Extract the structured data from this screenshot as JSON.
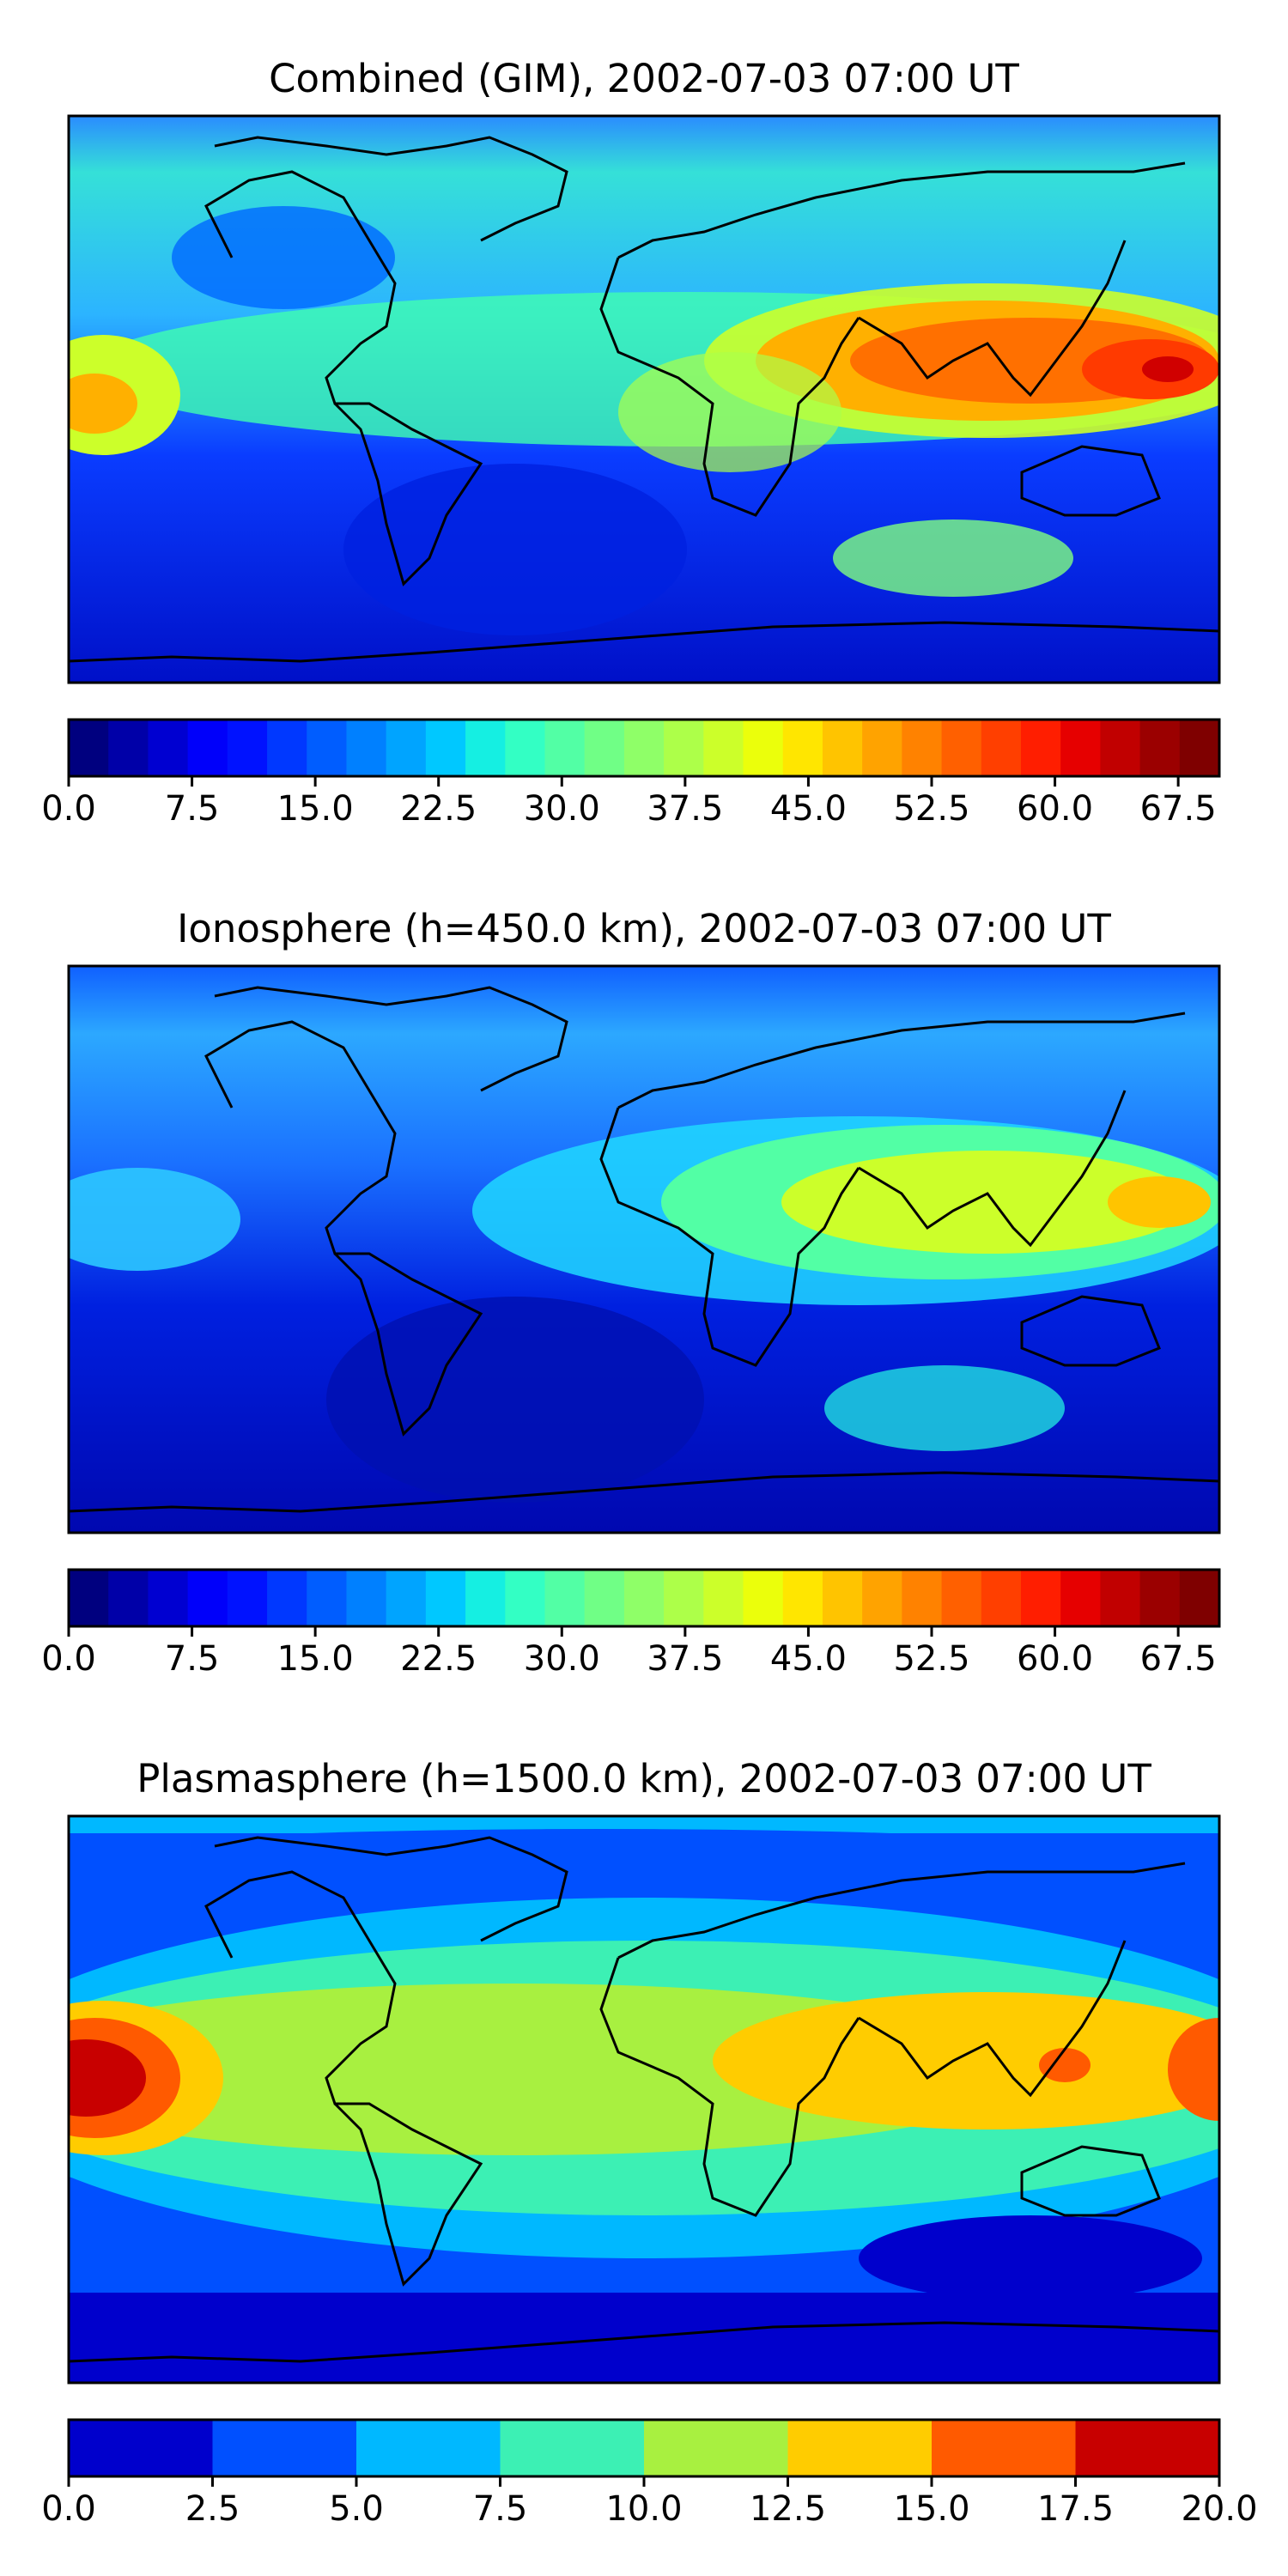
{
  "panels": [
    {
      "title": "Combined (GIM), 2002-07-03 07:00 UT",
      "scale": {
        "min": 0,
        "max": 70,
        "ticks": [
          "0.0",
          "7.5",
          "15.0",
          "22.5",
          "30.0",
          "37.5",
          "45.0",
          "52.5",
          "60.0",
          "67.5"
        ],
        "colors": [
          "#00007f",
          "#0000a8",
          "#0000d1",
          "#0000fa",
          "#0012ff",
          "#0038ff",
          "#005dff",
          "#0080ff",
          "#00a4ff",
          "#00c8ff",
          "#15efe2",
          "#33ffc4",
          "#52ffa5",
          "#70ff86",
          "#8fff68",
          "#adff49",
          "#ccff2a",
          "#ebff0b",
          "#ffe600",
          "#ffc400",
          "#ffa300",
          "#ff8200",
          "#ff6000",
          "#ff3f00",
          "#ff1e00",
          "#e60000",
          "#c10000",
          "#9b0000",
          "#7f0000"
        ]
      }
    },
    {
      "title": "Ionosphere  (h=450.0 km), 2002-07-03 07:00 UT",
      "scale": {
        "min": 0,
        "max": 70,
        "ticks": [
          "0.0",
          "7.5",
          "15.0",
          "22.5",
          "30.0",
          "37.5",
          "45.0",
          "52.5",
          "60.0",
          "67.5"
        ],
        "colors": [
          "#00007f",
          "#0000a8",
          "#0000d1",
          "#0000fa",
          "#0012ff",
          "#0038ff",
          "#005dff",
          "#0080ff",
          "#00a4ff",
          "#00c8ff",
          "#15efe2",
          "#33ffc4",
          "#52ffa5",
          "#70ff86",
          "#8fff68",
          "#adff49",
          "#ccff2a",
          "#ebff0b",
          "#ffe600",
          "#ffc400",
          "#ffa300",
          "#ff8200",
          "#ff6000",
          "#ff3f00",
          "#ff1e00",
          "#e60000",
          "#c10000",
          "#9b0000",
          "#7f0000"
        ]
      }
    },
    {
      "title": "Plasmasphere (h=1500.0 km), 2002-07-03 07:00 UT",
      "scale": {
        "min": 0,
        "max": 20,
        "ticks": [
          "0.0",
          "2.5",
          "5.0",
          "7.5",
          "10.0",
          "12.5",
          "15.0",
          "17.5",
          "20.0"
        ],
        "colors": [
          "#0000cc",
          "#0050ff",
          "#00b8ff",
          "#3cf0b4",
          "#a8f040",
          "#ffcc00",
          "#ff5a00",
          "#c80000"
        ]
      }
    }
  ]
}
